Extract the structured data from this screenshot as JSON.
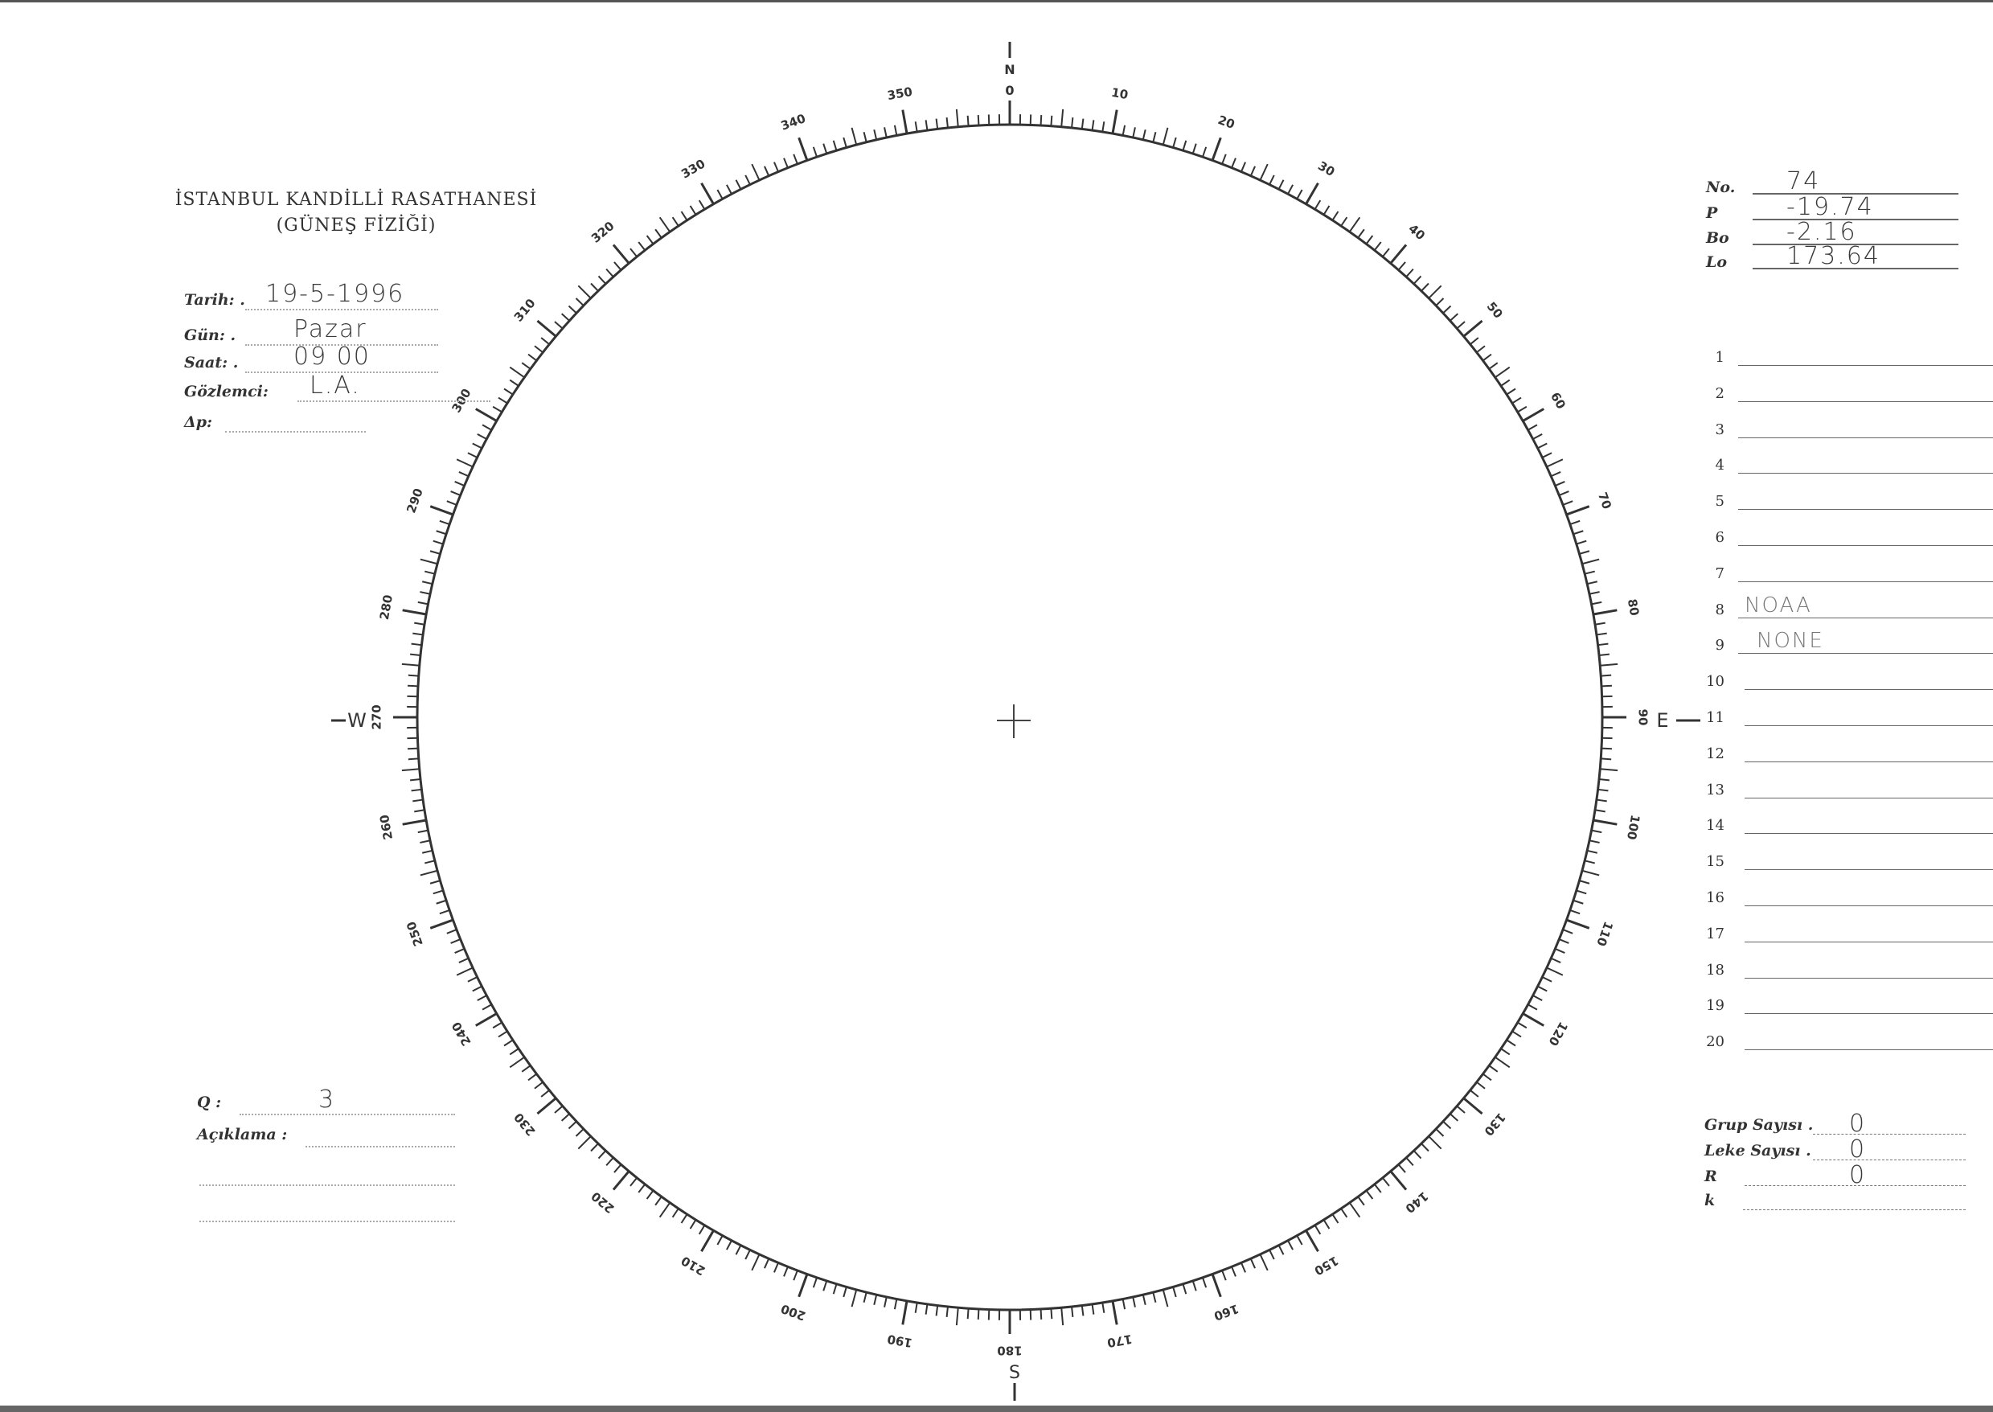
{
  "header": {
    "institution": "İSTANBUL KANDİLLİ RASATHANESİ",
    "department": "(GÜNEŞ FİZİĞİ)"
  },
  "observation": {
    "fields": [
      {
        "label": "Tarih: .",
        "value": "19-5-1996"
      },
      {
        "label": "Gün: .",
        "value": "Pazar"
      },
      {
        "label": "Saat: .",
        "value": "09 00"
      },
      {
        "label": "Gözlemci:",
        "value": "L.A."
      },
      {
        "label": "Δp:",
        "value": ""
      }
    ]
  },
  "ephemeris": [
    {
      "label": "No.",
      "value": "74"
    },
    {
      "label": "P",
      "value": "-19.74"
    },
    {
      "label": "Bo",
      "value": "-2.16"
    },
    {
      "label": "Lo",
      "value": "173.64"
    }
  ],
  "groups_list": [
    {
      "n": "1",
      "value": ""
    },
    {
      "n": "2",
      "value": ""
    },
    {
      "n": "3",
      "value": ""
    },
    {
      "n": "4",
      "value": ""
    },
    {
      "n": "5",
      "value": ""
    },
    {
      "n": "6",
      "value": ""
    },
    {
      "n": "7",
      "value": ""
    },
    {
      "n": "8",
      "value": "NOAA"
    },
    {
      "n": "9",
      "value": "NONE"
    },
    {
      "n": "10",
      "value": ""
    },
    {
      "n": "11",
      "value": ""
    },
    {
      "n": "12",
      "value": ""
    },
    {
      "n": "13",
      "value": ""
    },
    {
      "n": "14",
      "value": ""
    },
    {
      "n": "15",
      "value": ""
    },
    {
      "n": "16",
      "value": ""
    },
    {
      "n": "17",
      "value": ""
    },
    {
      "n": "18",
      "value": ""
    },
    {
      "n": "19",
      "value": ""
    },
    {
      "n": "20",
      "value": ""
    }
  ],
  "counts": [
    {
      "label": "Grup Sayısı .",
      "value": "0"
    },
    {
      "label": "Leke Sayısı .",
      "value": "0"
    },
    {
      "label": "R",
      "value": "0"
    },
    {
      "label": "k",
      "value": ""
    }
  ],
  "quality": {
    "label": "Q :",
    "value": "3"
  },
  "remarks": {
    "label": "Açıklama :",
    "value": ""
  },
  "dial": {
    "cardinals": {
      "north": "N",
      "east": "E",
      "south": "S",
      "west": "W"
    },
    "tick_labels": [
      "0",
      "10",
      "20",
      "30",
      "40",
      "50",
      "60",
      "70",
      "80",
      "90",
      "100",
      "110",
      "120",
      "130",
      "140",
      "150",
      "160",
      "170",
      "180",
      "190",
      "200",
      "210",
      "220",
      "230",
      "240",
      "250",
      "260",
      "270",
      "280",
      "290",
      "300",
      "310",
      "320",
      "330",
      "340",
      "350"
    ],
    "tick_step_degrees": 1
  }
}
